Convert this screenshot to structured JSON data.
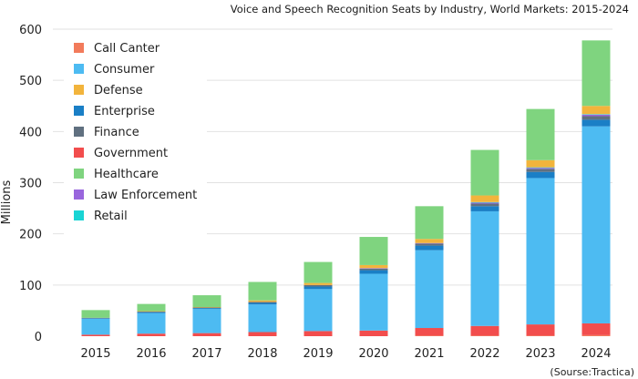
{
  "chart_data": {
    "type": "bar",
    "stacked": true,
    "title": "Voice and Speech Recognition Seats by Industry, World Markets: 2015-2024",
    "xlabel": "",
    "ylabel": "Millions",
    "ylim": [
      0,
      600
    ],
    "yticks": [
      "0",
      "100",
      "200",
      "300",
      "400",
      "500",
      "600"
    ],
    "grid": true,
    "legend_position": "top-left",
    "source": "(Sourse:Tractica)",
    "categories": [
      "2015",
      "2016",
      "2017",
      "2018",
      "2019",
      "2020",
      "2021",
      "2022",
      "2023",
      "2024"
    ],
    "series": [
      {
        "name": "Call Canter",
        "color": "#f27b5b",
        "values": [
          0,
          0,
          0,
          0,
          0,
          0,
          1,
          1,
          1,
          2
        ]
      },
      {
        "name": "Government",
        "color": "#f24d4d",
        "values": [
          3,
          5,
          6,
          8,
          10,
          11,
          15,
          19,
          22,
          23
        ]
      },
      {
        "name": "Consumer",
        "color": "#4dbbf2",
        "values": [
          31,
          40,
          47,
          54,
          82,
          111,
          152,
          224,
          286,
          385
        ]
      },
      {
        "name": "Enterprise",
        "color": "#1a7fc6",
        "values": [
          1,
          2,
          2,
          3,
          5,
          7,
          9,
          10,
          12,
          13
        ]
      },
      {
        "name": "Finance",
        "color": "#607080",
        "values": [
          1,
          1,
          1,
          2,
          3,
          3,
          4,
          5,
          6,
          7
        ]
      },
      {
        "name": "Law Enforcement",
        "color": "#9966dd",
        "values": [
          0,
          0,
          0,
          0,
          0,
          1,
          1,
          2,
          2,
          3
        ]
      },
      {
        "name": "Retail",
        "color": "#19d4d4",
        "values": [
          0,
          0,
          0,
          0,
          0,
          0,
          0,
          1,
          1,
          1
        ]
      },
      {
        "name": "Defense",
        "color": "#f2b43c",
        "values": [
          0,
          1,
          1,
          3,
          4,
          6,
          8,
          13,
          14,
          16
        ]
      },
      {
        "name": "Healthcare",
        "color": "#7fd47f",
        "values": [
          15,
          14,
          23,
          36,
          41,
          55,
          64,
          89,
          100,
          128
        ]
      }
    ],
    "legend_order": [
      "Call Canter",
      "Consumer",
      "Defense",
      "Enterprise",
      "Finance",
      "Government",
      "Healthcare",
      "Law Enforcement",
      "Retail"
    ]
  }
}
